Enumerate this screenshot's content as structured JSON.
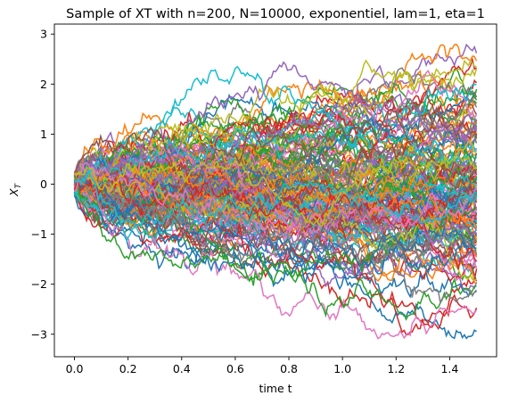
{
  "chart_data": {
    "type": "line",
    "title": "Sample of XT with n=200, N=10000, exponentiel, lam=1, eta=1",
    "xlabel": "time t",
    "ylabel_main": "X",
    "ylabel_sub": "T",
    "xlim": [
      -0.075,
      1.575
    ],
    "ylim": [
      -3.45,
      3.2
    ],
    "x_ticks": [
      0.0,
      0.2,
      0.4,
      0.6,
      0.8,
      1.0,
      1.2,
      1.4
    ],
    "x_tick_labels": [
      "0.0",
      "0.2",
      "0.4",
      "0.6",
      "0.8",
      "1.0",
      "1.2",
      "1.4"
    ],
    "y_ticks": [
      -3,
      -2,
      -1,
      0,
      1,
      2,
      3
    ],
    "y_tick_labels": [
      "−3",
      "−2",
      "−1",
      "0",
      "1",
      "2",
      "3"
    ],
    "t_start": 0.0,
    "t_end": 1.5,
    "n_steps": 200,
    "n_paths_drawn": 160,
    "grid": false,
    "legend": "none",
    "colors": [
      "#1f77b4",
      "#ff7f0e",
      "#2ca02c",
      "#d62728",
      "#9467bd",
      "#8c564b",
      "#e377c2",
      "#7f7f7f",
      "#bcbd22",
      "#17becf"
    ]
  }
}
